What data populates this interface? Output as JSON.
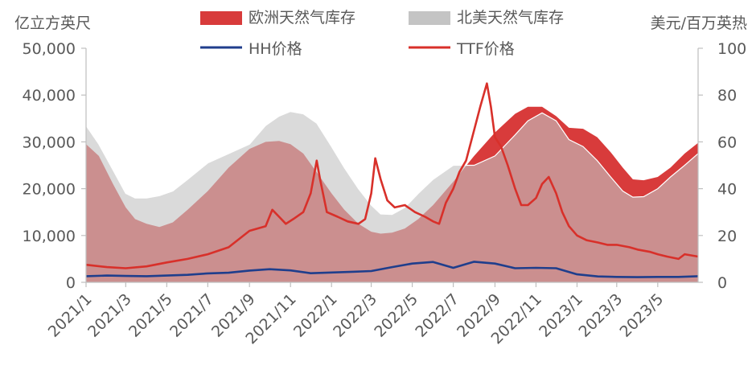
{
  "chart_data": {
    "type": "area",
    "left_axis_unit": "亿立方英尺",
    "right_axis_unit": "美元/百万英热",
    "left_ylim": [
      0,
      50000
    ],
    "right_ylim": [
      0,
      100
    ],
    "left_ticks": [
      "0",
      "10,000",
      "20,000",
      "30,000",
      "40,000",
      "50,000"
    ],
    "right_ticks": [
      "0",
      "20",
      "40",
      "60",
      "80",
      "100"
    ],
    "x_ticks": [
      "2021/1",
      "2021/3",
      "2021/5",
      "2021/7",
      "2021/9",
      "2021/11",
      "2022/1",
      "2022/3",
      "2022/5",
      "2022/7",
      "2022/9",
      "2022/11",
      "2023/1",
      "2023/3",
      "2023/5"
    ],
    "x_range": [
      "2021-01-01",
      "2023-06-30"
    ],
    "legend": [
      {
        "label": "欧洲天然气库存",
        "kind": "area",
        "color": "#d83b3b"
      },
      {
        "label": "北美天然气库存",
        "kind": "area",
        "color": "#c4c4c4"
      },
      {
        "label": "HH价格",
        "kind": "line",
        "color": "#1f3e8c"
      },
      {
        "label": "TTF价格",
        "kind": "line",
        "color": "#d8302a"
      }
    ],
    "series": [
      {
        "name": "欧洲天然气库存",
        "axis": "left",
        "color": "#d83b3b",
        "x": [
          "2021-01-01",
          "2021-01-20",
          "2021-02-10",
          "2021-03-01",
          "2021-03-15",
          "2021-04-01",
          "2021-04-20",
          "2021-05-10",
          "2021-06-01",
          "2021-07-01",
          "2021-08-01",
          "2021-09-01",
          "2021-09-25",
          "2021-10-15",
          "2021-11-01",
          "2021-11-20",
          "2021-12-10",
          "2022-01-01",
          "2022-01-20",
          "2022-02-10",
          "2022-03-01",
          "2022-03-15",
          "2022-04-01",
          "2022-04-20",
          "2022-05-10",
          "2022-06-01",
          "2022-07-01",
          "2022-08-01",
          "2022-09-01",
          "2022-10-01",
          "2022-10-20",
          "2022-11-10",
          "2022-12-01",
          "2022-12-20",
          "2023-01-10",
          "2023-01-31",
          "2023-02-20",
          "2023-03-10",
          "2023-03-25",
          "2023-04-10",
          "2023-05-01",
          "2023-05-20",
          "2023-06-10",
          "2023-06-30"
        ],
        "values": [
          29500,
          27000,
          21000,
          16000,
          13500,
          12500,
          11800,
          12800,
          15500,
          19500,
          24500,
          28500,
          30000,
          30200,
          29500,
          27500,
          23500,
          19000,
          15500,
          12500,
          10800,
          10400,
          10600,
          11500,
          13500,
          16500,
          21500,
          27000,
          32000,
          36000,
          37500,
          37500,
          35500,
          33000,
          32800,
          31000,
          27800,
          24500,
          22000,
          21800,
          22500,
          24500,
          27500,
          29800
        ]
      },
      {
        "name": "北美天然气库存",
        "axis": "left",
        "color": "#c4c4c4",
        "x": [
          "2021-01-01",
          "2021-01-20",
          "2021-02-10",
          "2021-03-01",
          "2021-03-15",
          "2021-04-01",
          "2021-04-20",
          "2021-05-10",
          "2021-06-01",
          "2021-07-01",
          "2021-08-01",
          "2021-09-01",
          "2021-09-25",
          "2021-10-15",
          "2021-11-01",
          "2021-11-20",
          "2021-12-10",
          "2022-01-01",
          "2022-01-20",
          "2022-02-10",
          "2022-03-01",
          "2022-03-15",
          "2022-04-01",
          "2022-04-20",
          "2022-05-10",
          "2022-06-01",
          "2022-07-01",
          "2022-08-01",
          "2022-09-01",
          "2022-10-01",
          "2022-10-20",
          "2022-11-10",
          "2022-12-01",
          "2022-12-20",
          "2023-01-10",
          "2023-01-31",
          "2023-02-20",
          "2023-03-10",
          "2023-03-25",
          "2023-04-10",
          "2023-05-01",
          "2023-05-20",
          "2023-06-10",
          "2023-06-30"
        ],
        "values": [
          33500,
          29500,
          24000,
          19000,
          18000,
          18000,
          18500,
          19500,
          22000,
          25500,
          27500,
          29500,
          33500,
          35500,
          36500,
          36000,
          34000,
          29000,
          24500,
          20000,
          16500,
          14600,
          14500,
          16000,
          19000,
          22000,
          25000,
          25000,
          27000,
          31500,
          34500,
          36200,
          34500,
          30500,
          29000,
          26000,
          22500,
          19500,
          18200,
          18300,
          20000,
          22500,
          25000,
          27500
        ]
      },
      {
        "name": "HH价格",
        "axis": "right",
        "color": "#1f3e8c",
        "x": [
          "2021-01-01",
          "2021-02-01",
          "2021-03-01",
          "2021-04-01",
          "2021-05-01",
          "2021-06-01",
          "2021-07-01",
          "2021-08-01",
          "2021-09-01",
          "2021-10-01",
          "2021-11-01",
          "2021-12-01",
          "2022-01-01",
          "2022-02-01",
          "2022-03-01",
          "2022-04-01",
          "2022-05-01",
          "2022-06-01",
          "2022-07-01",
          "2022-08-01",
          "2022-09-01",
          "2022-10-01",
          "2022-11-01",
          "2022-12-01",
          "2023-01-01",
          "2023-02-01",
          "2023-03-01",
          "2023-04-01",
          "2023-05-01",
          "2023-06-01",
          "2023-06-30"
        ],
        "values": [
          2.6,
          2.9,
          2.7,
          2.6,
          2.9,
          3.2,
          3.8,
          4.1,
          5.0,
          5.6,
          5.1,
          3.9,
          4.2,
          4.5,
          4.8,
          6.5,
          8.0,
          8.7,
          6.2,
          8.8,
          8.0,
          6.0,
          6.2,
          6.0,
          3.4,
          2.5,
          2.3,
          2.2,
          2.3,
          2.3,
          2.6
        ]
      },
      {
        "name": "TTF价格",
        "axis": "right",
        "color": "#d8302a",
        "x": [
          "2021-01-01",
          "2021-02-01",
          "2021-03-01",
          "2021-04-01",
          "2021-05-01",
          "2021-06-01",
          "2021-07-01",
          "2021-08-01",
          "2021-09-01",
          "2021-09-25",
          "2021-10-05",
          "2021-10-15",
          "2021-10-25",
          "2021-11-05",
          "2021-11-20",
          "2021-12-01",
          "2021-12-10",
          "2021-12-15",
          "2021-12-25",
          "2022-01-10",
          "2022-01-25",
          "2022-02-10",
          "2022-02-20",
          "2022-03-01",
          "2022-03-07",
          "2022-03-15",
          "2022-03-25",
          "2022-04-05",
          "2022-04-20",
          "2022-05-05",
          "2022-05-20",
          "2022-06-01",
          "2022-06-10",
          "2022-06-20",
          "2022-07-01",
          "2022-07-10",
          "2022-07-20",
          "2022-08-01",
          "2022-08-10",
          "2022-08-20",
          "2022-08-26",
          "2022-09-01",
          "2022-09-10",
          "2022-09-20",
          "2022-10-01",
          "2022-10-10",
          "2022-10-20",
          "2022-11-01",
          "2022-11-10",
          "2022-11-20",
          "2022-12-01",
          "2022-12-10",
          "2022-12-20",
          "2023-01-01",
          "2023-01-15",
          "2023-02-01",
          "2023-02-15",
          "2023-03-01",
          "2023-03-20",
          "2023-04-01",
          "2023-04-20",
          "2023-05-01",
          "2023-05-15",
          "2023-06-01",
          "2023-06-10",
          "2023-06-30"
        ],
        "values": [
          7.5,
          6.5,
          6.0,
          6.8,
          8.5,
          10.0,
          12.0,
          15.0,
          22.0,
          24.0,
          31.0,
          28.0,
          25.0,
          27.0,
          30.0,
          38.0,
          52.0,
          44.0,
          30.0,
          28.0,
          26.0,
          25.0,
          27.0,
          38.0,
          53.0,
          44.0,
          35.0,
          32.0,
          33.0,
          30.0,
          28.0,
          26.0,
          25.0,
          34.0,
          40.0,
          47.0,
          52.0,
          65.0,
          75.0,
          85.0,
          75.0,
          62.0,
          58.0,
          50.0,
          40.0,
          33.0,
          33.0,
          36.0,
          42.0,
          45.0,
          38.0,
          30.0,
          24.0,
          20.0,
          18.0,
          17.0,
          16.0,
          16.0,
          15.0,
          14.0,
          13.0,
          12.0,
          11.0,
          10.0,
          12.0,
          11.0
        ]
      }
    ]
  }
}
